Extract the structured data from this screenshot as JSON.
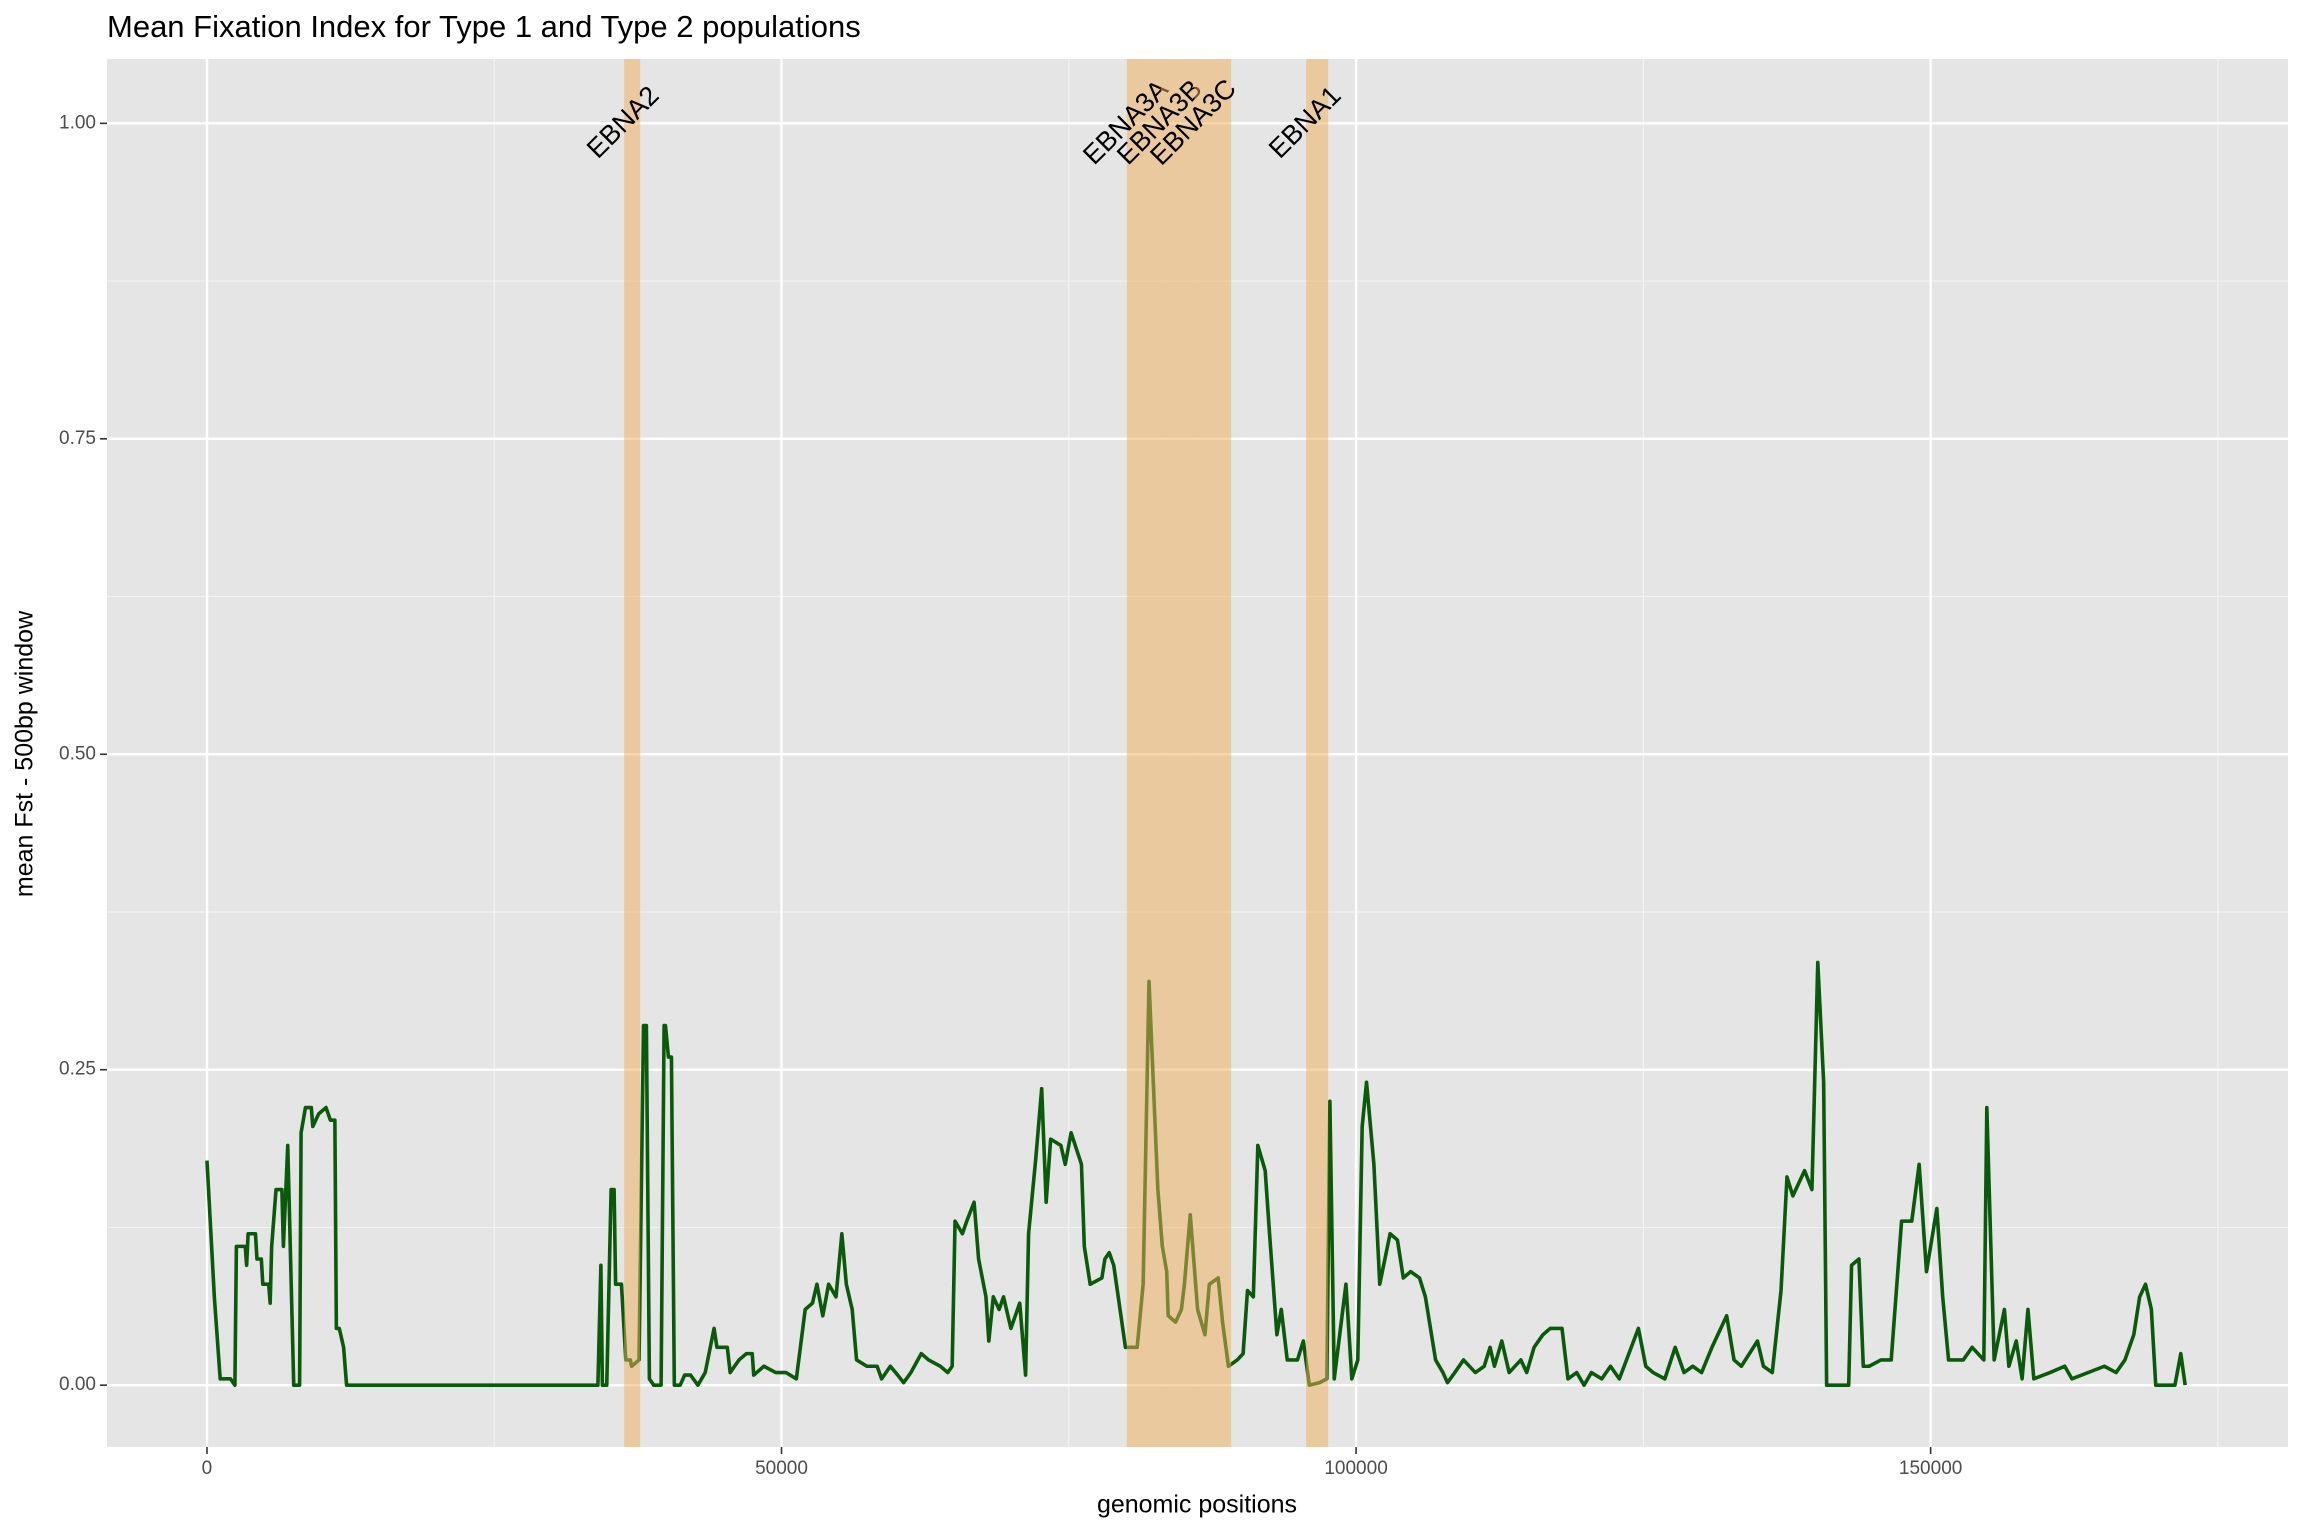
{
  "chart_data": {
    "type": "line",
    "title": "Mean Fixation Index for Type 1 and Type 2 populations",
    "x_label": "genomic positions",
    "y_label": "mean Fst - 500bp window",
    "xlim": [
      -8700,
      181100
    ],
    "ylim": [
      -0.049,
      1.051
    ],
    "xticks": [
      0,
      50000,
      100000,
      150000
    ],
    "yticks": [
      {
        "value": 0,
        "label": "0.00"
      },
      {
        "value": 0.25,
        "label": "0.25"
      },
      {
        "value": 0.5,
        "label": "0.50"
      },
      {
        "value": 0.75,
        "label": "0.75"
      },
      {
        "value": 1,
        "label": "1.00"
      }
    ],
    "xminorticks": [
      25000,
      75000,
      125000,
      175000
    ],
    "yminorticks": [
      0.125,
      0.375,
      0.625,
      0.875
    ],
    "grid": true,
    "annotation_y": 1,
    "highlight_color": "#f0ae5a",
    "highlights": [
      {
        "label": "EBNA2",
        "start": 36300,
        "end": 37700
      },
      {
        "label": "EBNA3A",
        "start": 80050,
        "end": 82990
      },
      {
        "label": "EBNA3B",
        "start": 82990,
        "end": 85930
      },
      {
        "label": "EBNA3C",
        "start": 85930,
        "end": 89130
      },
      {
        "label": "EBNA1",
        "start": 95650,
        "end": 97570
      }
    ],
    "series": [
      {
        "name": "mean Fst",
        "color": "#0b5a0b",
        "x": [
          0,
          640,
          1150,
          2050,
          2430,
          2560,
          3330,
          3450,
          3580,
          4220,
          4350,
          4730,
          4860,
          5370,
          5500,
          5630,
          6010,
          6520,
          6650,
          7030,
          7550,
          8060,
          8190,
          8570,
          9080,
          9210,
          9720,
          10360,
          10740,
          11130,
          11260,
          11510,
          11640,
          11890,
          12150,
          34020,
          34280,
          34410,
          34790,
          35170,
          35430,
          35560,
          36070,
          36450,
          36840,
          36960,
          37600,
          37990,
          38240,
          38500,
          38880,
          39520,
          39780,
          39900,
          40160,
          40420,
          40670,
          41180,
          41570,
          42080,
          42720,
          43360,
          44130,
          44380,
          45280,
          45530,
          46300,
          46940,
          47450,
          47580,
          48470,
          49500,
          50390,
          51290,
          52060,
          52690,
          53080,
          53590,
          54100,
          54740,
          55250,
          55640,
          56150,
          56530,
          57430,
          58320,
          58710,
          59470,
          60110,
          60620,
          61260,
          62160,
          62800,
          63820,
          64460,
          64850,
          65100,
          65740,
          66120,
          66760,
          67150,
          67790,
          68040,
          68430,
          68940,
          69320,
          69960,
          70730,
          71240,
          71500,
          72130,
          72640,
          73030,
          73420,
          74310,
          74690,
          75200,
          76100,
          76350,
          76860,
          77880,
          78140,
          78520,
          78910,
          79930,
          80950,
          81210,
          81470,
          81980,
          82750,
          83140,
          83520,
          83650,
          84290,
          84800,
          85060,
          85570,
          86210,
          86850,
          87230,
          88000,
          88380,
          88890,
          89660,
          90170,
          90550,
          91060,
          91450,
          92090,
          92470,
          93110,
          93490,
          94010,
          94900,
          95410,
          95930,
          96820,
          97460,
          97720,
          98100,
          99120,
          99630,
          100150,
          100530,
          100910,
          101550,
          102060,
          102960,
          103600,
          104110,
          104750,
          105520,
          106030,
          106920,
          107560,
          107950,
          108590,
          109350,
          110380,
          111150,
          111660,
          112040,
          112680,
          113320,
          114340,
          114850,
          115490,
          116260,
          116900,
          117920,
          118440,
          119200,
          119840,
          120480,
          121380,
          122140,
          122910,
          124570,
          125210,
          125850,
          126870,
          127770,
          128540,
          129300,
          130070,
          130970,
          132250,
          132890,
          133530,
          134930,
          135450,
          136220,
          136980,
          137500,
          138010,
          139030,
          139670,
          140180,
          140690,
          140950,
          142870,
          143120,
          143760,
          144140,
          144650,
          145680,
          146570,
          147470,
          148360,
          149000,
          149640,
          150540,
          151050,
          151560,
          152840,
          153610,
          154630,
          154890,
          155530,
          156420,
          156810,
          157450,
          157960,
          158470,
          158980,
          160390,
          161670,
          162300,
          165120,
          166140,
          166910,
          167680,
          168190,
          168700,
          169210,
          169590,
          171260,
          171770,
          172150
        ],
        "values": [
          0.178,
          0.07,
          0.005,
          0.005,
          0,
          0.11,
          0.11,
          0.095,
          0.12,
          0.12,
          0.1,
          0.1,
          0.08,
          0.08,
          0.065,
          0.11,
          0.155,
          0.155,
          0.11,
          0.19,
          0,
          0,
          0.2,
          0.22,
          0.22,
          0.205,
          0.215,
          0.22,
          0.21,
          0.21,
          0.045,
          0.045,
          0.04,
          0.03,
          0,
          0,
          0.095,
          0,
          0,
          0.155,
          0.155,
          0.08,
          0.08,
          0.02,
          0.02,
          0.015,
          0.02,
          0.285,
          0.285,
          0.005,
          0,
          0,
          0.285,
          0.285,
          0.26,
          0.26,
          0,
          0,
          0.008,
          0.008,
          0,
          0.01,
          0.045,
          0.03,
          0.03,
          0.01,
          0.02,
          0.025,
          0.025,
          0.008,
          0.015,
          0.01,
          0.01,
          0.005,
          0.06,
          0.065,
          0.08,
          0.055,
          0.08,
          0.07,
          0.12,
          0.08,
          0.06,
          0.02,
          0.015,
          0.015,
          0.005,
          0.015,
          0.008,
          0.002,
          0.01,
          0.025,
          0.02,
          0.015,
          0.01,
          0.015,
          0.13,
          0.12,
          0.13,
          0.145,
          0.1,
          0.07,
          0.035,
          0.07,
          0.06,
          0.07,
          0.045,
          0.065,
          0.008,
          0.12,
          0.18,
          0.235,
          0.145,
          0.195,
          0.19,
          0.175,
          0.2,
          0.175,
          0.11,
          0.08,
          0.085,
          0.1,
          0.105,
          0.095,
          0.03,
          0.03,
          0.055,
          0.08,
          0.32,
          0.155,
          0.11,
          0.09,
          0.055,
          0.05,
          0.06,
          0.08,
          0.135,
          0.06,
          0.04,
          0.08,
          0.085,
          0.05,
          0.015,
          0.02,
          0.025,
          0.075,
          0.07,
          0.19,
          0.17,
          0.12,
          0.04,
          0.06,
          0.02,
          0.02,
          0.035,
          0,
          0.002,
          0.005,
          0.225,
          0.005,
          0.08,
          0.005,
          0.02,
          0.205,
          0.24,
          0.175,
          0.08,
          0.12,
          0.115,
          0.085,
          0.09,
          0.085,
          0.07,
          0.02,
          0.01,
          0.002,
          0.01,
          0.02,
          0.01,
          0.015,
          0.03,
          0.015,
          0.035,
          0.01,
          0.02,
          0.01,
          0.03,
          0.04,
          0.045,
          0.045,
          0.005,
          0.01,
          0,
          0.01,
          0.005,
          0.015,
          0.005,
          0.045,
          0.015,
          0.01,
          0.005,
          0.03,
          0.01,
          0.015,
          0.01,
          0.03,
          0.055,
          0.02,
          0.015,
          0.035,
          0.015,
          0.01,
          0.075,
          0.165,
          0.15,
          0.17,
          0.155,
          0.335,
          0.24,
          0,
          0,
          0.095,
          0.1,
          0.015,
          0.015,
          0.02,
          0.02,
          0.13,
          0.13,
          0.175,
          0.09,
          0.14,
          0.07,
          0.02,
          0.02,
          0.03,
          0.02,
          0.22,
          0.02,
          0.06,
          0.015,
          0.035,
          0.005,
          0.06,
          0.005,
          0.01,
          0.015,
          0.005,
          0.015,
          0.01,
          0.02,
          0.04,
          0.07,
          0.08,
          0.06,
          0,
          0,
          0.025,
          0
        ]
      }
    ]
  }
}
